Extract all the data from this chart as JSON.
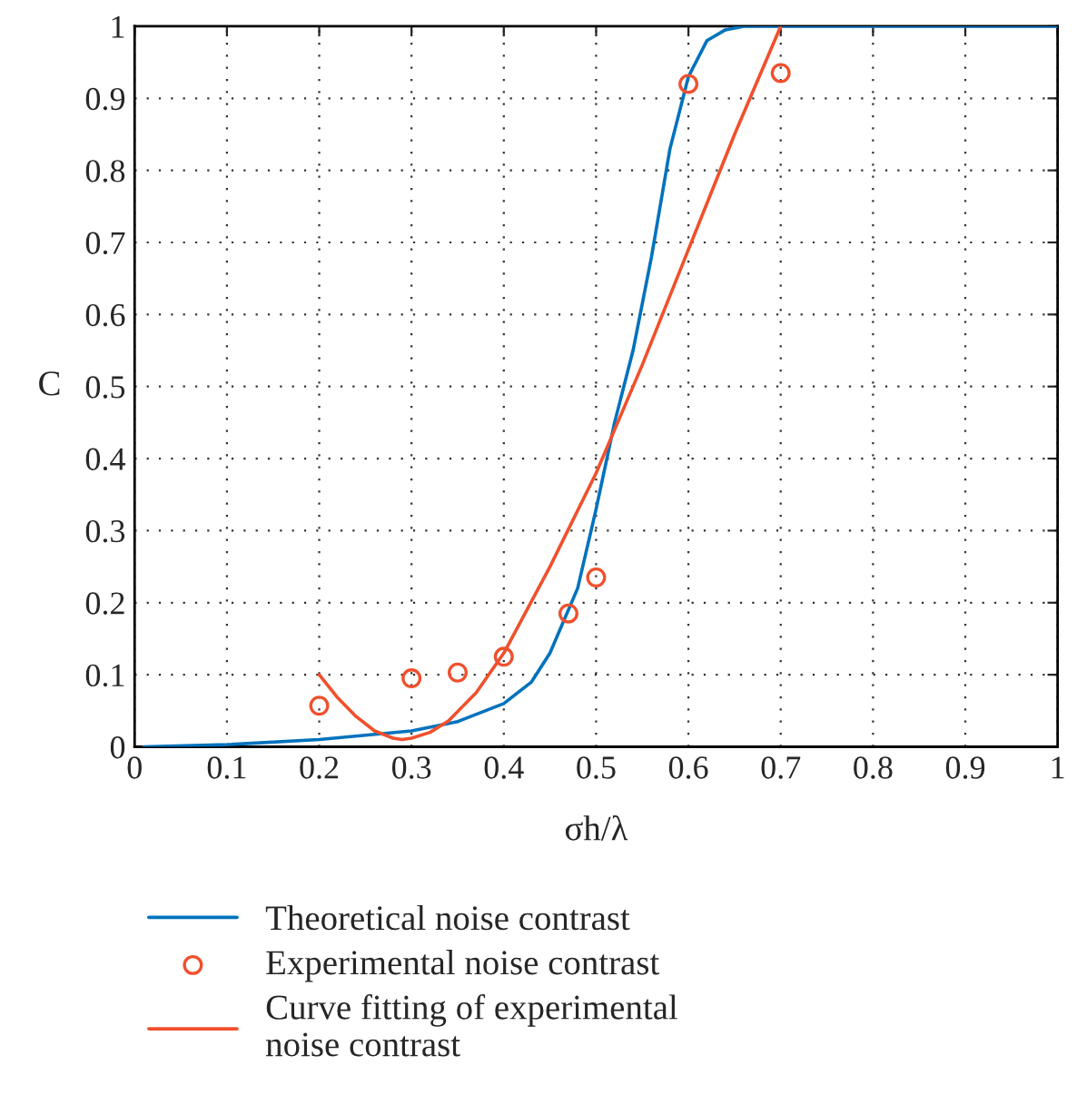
{
  "chart_data": {
    "type": "line",
    "xlabel": "σh/λ",
    "ylabel": "C",
    "xlim": [
      0,
      1
    ],
    "ylim": [
      0,
      1
    ],
    "xticks": [
      0,
      0.1,
      0.2,
      0.3,
      0.4,
      0.5,
      0.6,
      0.7,
      0.8,
      0.9,
      1
    ],
    "yticks": [
      0,
      0.1,
      0.2,
      0.3,
      0.4,
      0.5,
      0.6,
      0.7,
      0.8,
      0.9,
      1
    ],
    "grid": true,
    "legend": "bottom",
    "series": [
      {
        "name": "Theoretical noise contrast",
        "color": "#0072bd",
        "x": [
          0.01,
          0.1,
          0.2,
          0.3,
          0.35,
          0.4,
          0.43,
          0.45,
          0.48,
          0.5,
          0.52,
          0.54,
          0.56,
          0.58,
          0.6,
          0.62,
          0.64,
          0.66,
          1.0
        ],
        "values": [
          0,
          0.003,
          0.01,
          0.022,
          0.035,
          0.06,
          0.09,
          0.13,
          0.22,
          0.33,
          0.45,
          0.55,
          0.68,
          0.83,
          0.93,
          0.98,
          0.995,
          1,
          1
        ]
      },
      {
        "name": "Experimental noise contrast",
        "type": "scatter",
        "marker": "circle",
        "color": "#f0502d",
        "x": [
          0.2,
          0.3,
          0.35,
          0.4,
          0.47,
          0.5,
          0.6,
          0.7
        ],
        "values": [
          0.057,
          0.095,
          0.103,
          0.125,
          0.185,
          0.235,
          0.92,
          0.935
        ]
      },
      {
        "name": "Curve fitting of experimental\nnoise contrast",
        "color": "#f0502d",
        "x": [
          0.2,
          0.22,
          0.24,
          0.26,
          0.28,
          0.29,
          0.3,
          0.32,
          0.34,
          0.37,
          0.4,
          0.45,
          0.5,
          0.55,
          0.6,
          0.65,
          0.7
        ],
        "values": [
          0.1,
          0.068,
          0.042,
          0.022,
          0.012,
          0.01,
          0.012,
          0.02,
          0.036,
          0.075,
          0.13,
          0.25,
          0.38,
          0.53,
          0.69,
          0.85,
          1.0
        ]
      }
    ]
  }
}
